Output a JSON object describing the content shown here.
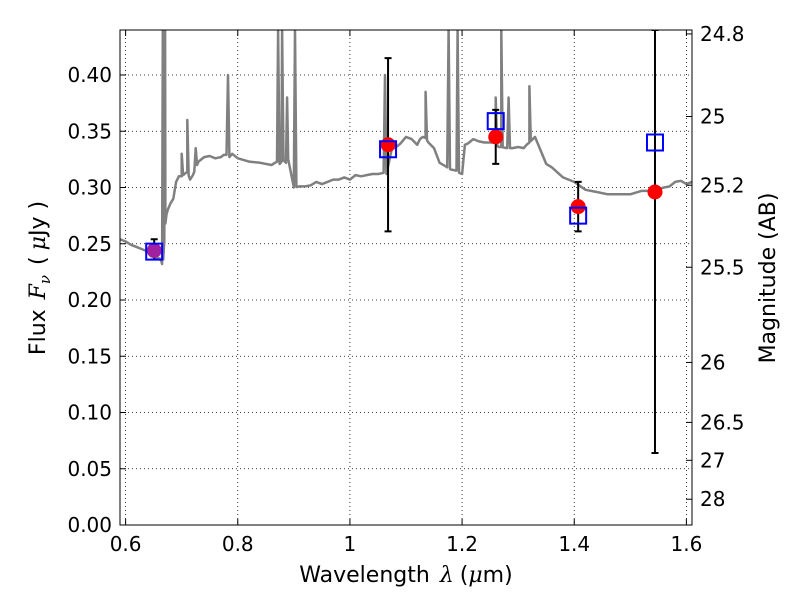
{
  "chart_data": {
    "type": "scatter",
    "xlabel": {
      "prefix": "Wavelength",
      "symbol": "λ",
      "unit_open": "(",
      "unit_mu": "μ",
      "unit_rest": "m)"
    },
    "ylabel": {
      "prefix": "Flux",
      "symbol": "F",
      "sub": "ν",
      "unit_open": "(",
      "unit_mu": "μ",
      "unit_rest": "Jy )"
    },
    "y2label": "Magnitude (AB)",
    "xlim": [
      0.59,
      1.61
    ],
    "ylim": [
      0.0,
      0.44
    ],
    "grid": true,
    "xticks": [
      0.6,
      0.8,
      1.0,
      1.2,
      1.4,
      1.6
    ],
    "xtick_labels": [
      "0.6",
      "0.8",
      "1",
      "1.2",
      "1.4",
      "1.6"
    ],
    "yticks": [
      0.0,
      0.05,
      0.1,
      0.15,
      0.2,
      0.25,
      0.3,
      0.35,
      0.4
    ],
    "ytick_labels": [
      "0.00",
      "0.05",
      "0.10",
      "0.15",
      "0.20",
      "0.25",
      "0.30",
      "0.35",
      "0.40"
    ],
    "y2ticks": [
      {
        "flux": 0.4365,
        "label": "24.8"
      },
      {
        "flux": 0.3631,
        "label": "25"
      },
      {
        "flux": 0.302,
        "label": "25.2"
      },
      {
        "flux": 0.2291,
        "label": "25.5"
      },
      {
        "flux": 0.1445,
        "label": "26"
      },
      {
        "flux": 0.0912,
        "label": "26.5"
      },
      {
        "flux": 0.0575,
        "label": "27"
      },
      {
        "flux": 0.0229,
        "label": "28"
      }
    ],
    "model_spectrum": {
      "color": "#808080",
      "x": [
        0.59,
        0.6,
        0.61,
        0.62,
        0.63,
        0.64,
        0.645,
        0.655,
        0.66,
        0.663,
        0.665,
        0.667,
        0.669,
        0.671,
        0.673,
        0.675,
        0.68,
        0.685,
        0.69,
        0.695,
        0.7,
        0.71,
        0.715,
        0.72,
        0.73,
        0.74,
        0.75,
        0.76,
        0.77,
        0.775,
        0.78,
        0.785,
        0.79,
        0.8,
        0.82,
        0.84,
        0.86,
        0.87,
        0.875,
        0.878,
        0.882,
        0.886,
        0.89,
        0.9,
        0.91,
        0.92,
        0.93,
        0.94,
        0.95,
        0.96,
        0.97,
        0.98,
        0.99,
        1.0,
        1.01,
        1.02,
        1.03,
        1.04,
        1.05,
        1.06,
        1.065,
        1.075,
        1.08,
        1.09,
        1.1,
        1.11,
        1.12,
        1.125,
        1.13,
        1.135,
        1.14,
        1.15,
        1.16,
        1.17,
        1.18,
        1.19,
        1.195,
        1.2,
        1.205,
        1.21,
        1.22,
        1.23,
        1.24,
        1.25,
        1.26,
        1.265,
        1.27,
        1.28,
        1.29,
        1.3,
        1.31,
        1.315,
        1.32,
        1.33,
        1.34,
        1.35,
        1.36,
        1.38,
        1.4,
        1.42,
        1.44,
        1.46,
        1.48,
        1.5,
        1.52,
        1.54,
        1.56,
        1.57,
        1.58,
        1.59,
        1.6,
        1.61
      ],
      "y": [
        0.254,
        0.252,
        0.249,
        0.247,
        0.245,
        0.243,
        0.239,
        0.238,
        0.237,
        0.236,
        0.232,
        0.236,
        0.252,
        0.268,
        0.276,
        0.28,
        0.286,
        0.29,
        0.305,
        0.31,
        0.31,
        0.314,
        0.307,
        0.311,
        0.323,
        0.327,
        0.328,
        0.326,
        0.327,
        0.329,
        0.329,
        0.327,
        0.33,
        0.326,
        0.323,
        0.322,
        0.32,
        0.323,
        0.321,
        0.323,
        0.324,
        0.322,
        0.325,
        0.3,
        0.301,
        0.301,
        0.302,
        0.305,
        0.303,
        0.305,
        0.307,
        0.307,
        0.309,
        0.307,
        0.311,
        0.31,
        0.311,
        0.312,
        0.312,
        0.313,
        0.312,
        0.335,
        0.335,
        0.339,
        0.345,
        0.343,
        0.338,
        0.343,
        0.345,
        0.344,
        0.34,
        0.335,
        0.322,
        0.319,
        0.316,
        0.315,
        0.313,
        0.312,
        0.338,
        0.339,
        0.343,
        0.341,
        0.34,
        0.34,
        0.34,
        0.336,
        0.336,
        0.335,
        0.335,
        0.336,
        0.335,
        0.338,
        0.34,
        0.345,
        0.333,
        0.321,
        0.318,
        0.309,
        0.305,
        0.298,
        0.296,
        0.294,
        0.294,
        0.294,
        0.297,
        0.297,
        0.3,
        0.301,
        0.305,
        0.306,
        0.303,
        0.305
      ],
      "emission_lines": [
        {
          "x": 0.6663,
          "peak": 0.44
        },
        {
          "x": 0.6705,
          "peak": 0.44
        },
        {
          "x": 0.7,
          "peak": 0.33
        },
        {
          "x": 0.71,
          "peak": 0.36
        },
        {
          "x": 0.725,
          "peak": 0.335
        },
        {
          "x": 0.7825,
          "peak": 0.4
        },
        {
          "x": 0.872,
          "peak": 0.44
        },
        {
          "x": 0.879,
          "peak": 0.44
        },
        {
          "x": 0.888,
          "peak": 0.38
        },
        {
          "x": 0.902,
          "peak": 0.44
        },
        {
          "x": 1.0625,
          "peak": 0.4
        },
        {
          "x": 1.135,
          "peak": 0.385
        },
        {
          "x": 1.176,
          "peak": 0.44
        },
        {
          "x": 1.192,
          "peak": 0.44
        },
        {
          "x": 1.26,
          "peak": 0.38
        },
        {
          "x": 1.27,
          "peak": 0.44
        },
        {
          "x": 1.283,
          "peak": 0.38
        },
        {
          "x": 1.32,
          "peak": 0.39
        }
      ]
    },
    "series": [
      {
        "marker": "square-open",
        "color": "#0000ff",
        "x": [
          0.651,
          1.068,
          1.26,
          1.407,
          1.544
        ],
        "y": [
          0.243,
          0.334,
          0.359,
          0.275,
          0.34
        ]
      },
      {
        "marker": "circle-filled",
        "color": "#ff0000",
        "x": [
          0.651,
          1.068,
          1.26,
          1.407,
          1.544
        ],
        "y": [
          0.244,
          0.338,
          0.345,
          0.283,
          0.296
        ],
        "err_low": [
          0.236,
          0.261,
          0.321,
          0.261,
          0.064
        ],
        "err_high": [
          0.254,
          0.415,
          0.369,
          0.305,
          0.44
        ]
      }
    ]
  },
  "colors": {
    "magenta_overlap": "#a020a0",
    "errorbar": "#000000"
  }
}
